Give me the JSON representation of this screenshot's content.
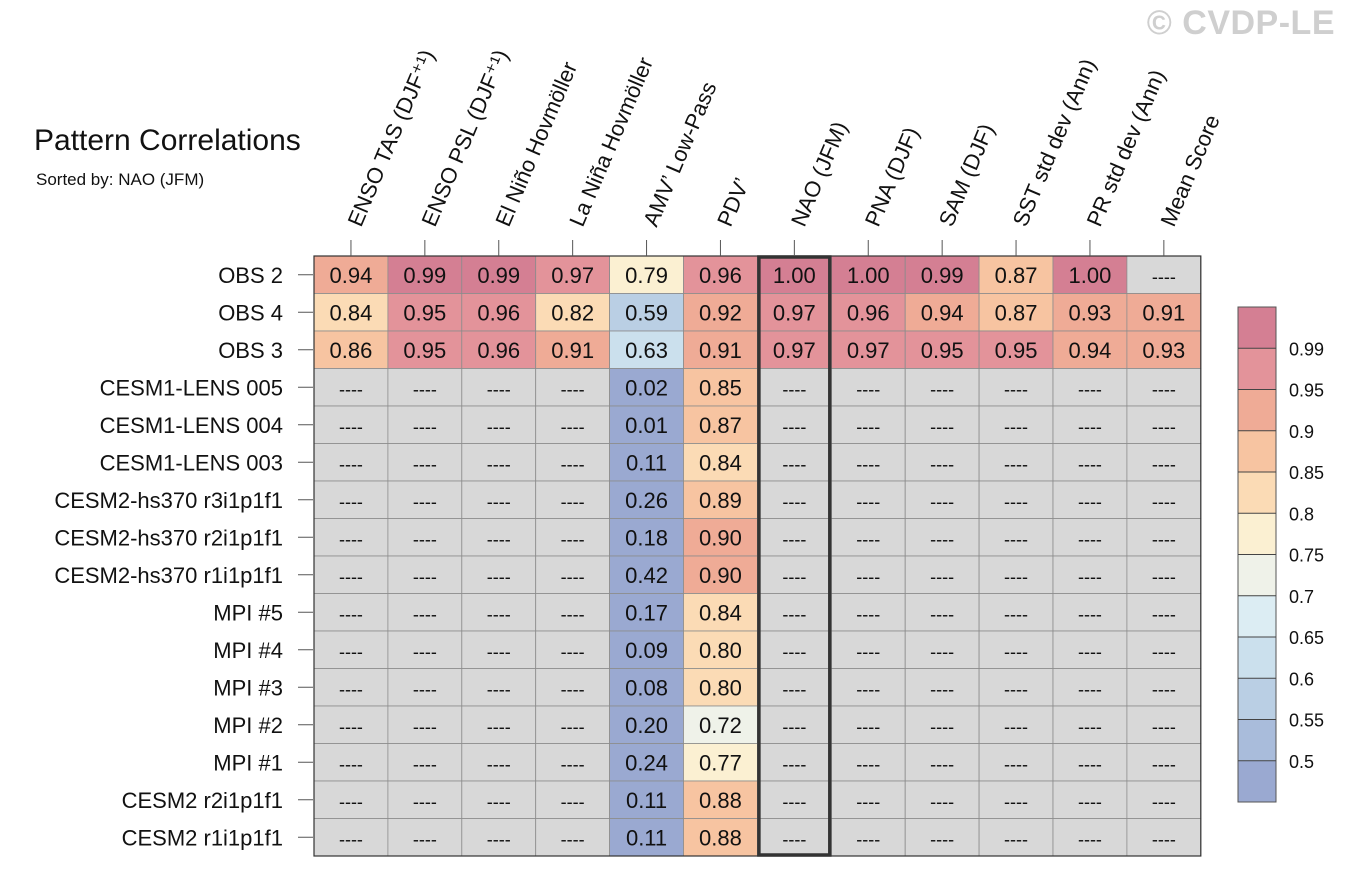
{
  "watermark": "© CVDP-LE",
  "chart_data": {
    "type": "heatmap",
    "title": "Pattern Correlations",
    "subtitle": "Sorted by: NAO (JFM)",
    "highlighted_column": "NAO (JFM)",
    "missing_label": "----",
    "columns": [
      "ENSO TAS (DJF⁺¹)",
      "ENSO PSL (DJF⁺¹)",
      "El Niño Hovmöller",
      "La Niña Hovmöller",
      "AMV’ Low-Pass",
      "PDV’",
      "NAO (JFM)",
      "PNA (DJF)",
      "SAM (DJF)",
      "SST std dev (Ann)",
      "PR std dev (Ann)",
      "Mean Score"
    ],
    "rows": [
      "OBS 2",
      "OBS 4",
      "OBS 3",
      "CESM1-LENS 005",
      "CESM1-LENS 004",
      "CESM1-LENS 003",
      "CESM2-hs370 r3i1p1f1",
      "CESM2-hs370 r2i1p1f1",
      "CESM2-hs370 r1i1p1f1",
      "MPI #5",
      "MPI #4",
      "MPI #3",
      "MPI #2",
      "MPI #1",
      "CESM2 r2i1p1f1",
      "CESM2 r1i1p1f1"
    ],
    "values": [
      [
        0.94,
        0.99,
        0.99,
        0.97,
        0.79,
        0.96,
        1.0,
        1.0,
        0.99,
        0.87,
        1.0,
        null
      ],
      [
        0.84,
        0.95,
        0.96,
        0.82,
        0.59,
        0.92,
        0.97,
        0.96,
        0.94,
        0.87,
        0.93,
        0.91
      ],
      [
        0.86,
        0.95,
        0.96,
        0.91,
        0.63,
        0.91,
        0.97,
        0.97,
        0.95,
        0.95,
        0.94,
        0.93
      ],
      [
        null,
        null,
        null,
        null,
        0.02,
        0.85,
        null,
        null,
        null,
        null,
        null,
        null
      ],
      [
        null,
        null,
        null,
        null,
        0.01,
        0.87,
        null,
        null,
        null,
        null,
        null,
        null
      ],
      [
        null,
        null,
        null,
        null,
        0.11,
        0.84,
        null,
        null,
        null,
        null,
        null,
        null
      ],
      [
        null,
        null,
        null,
        null,
        0.26,
        0.89,
        null,
        null,
        null,
        null,
        null,
        null
      ],
      [
        null,
        null,
        null,
        null,
        0.18,
        0.9,
        null,
        null,
        null,
        null,
        null,
        null
      ],
      [
        null,
        null,
        null,
        null,
        0.42,
        0.9,
        null,
        null,
        null,
        null,
        null,
        null
      ],
      [
        null,
        null,
        null,
        null,
        0.17,
        0.84,
        null,
        null,
        null,
        null,
        null,
        null
      ],
      [
        null,
        null,
        null,
        null,
        0.09,
        0.8,
        null,
        null,
        null,
        null,
        null,
        null
      ],
      [
        null,
        null,
        null,
        null,
        0.08,
        0.8,
        null,
        null,
        null,
        null,
        null,
        null
      ],
      [
        null,
        null,
        null,
        null,
        0.2,
        0.72,
        null,
        null,
        null,
        null,
        null,
        null
      ],
      [
        null,
        null,
        null,
        null,
        0.24,
        0.77,
        null,
        null,
        null,
        null,
        null,
        null
      ],
      [
        null,
        null,
        null,
        null,
        0.11,
        0.88,
        null,
        null,
        null,
        null,
        null,
        null
      ],
      [
        null,
        null,
        null,
        null,
        0.11,
        0.88,
        null,
        null,
        null,
        null,
        null,
        null
      ]
    ],
    "colorbar": {
      "thresholds": [
        0.5,
        0.55,
        0.6,
        0.65,
        0.7,
        0.75,
        0.8,
        0.85,
        0.9,
        0.95,
        0.99
      ],
      "tick_labels": [
        "0.5",
        "0.55",
        "0.6",
        "0.65",
        "0.7",
        "0.75",
        "0.8",
        "0.85",
        "0.9",
        "0.95",
        "0.99"
      ],
      "colors": [
        "#9aa9d1",
        "#a9bcdb",
        "#bacfe4",
        "#cbe0ed",
        "#dcedf3",
        "#eff2e9",
        "#fbf0d2",
        "#fbdbb5",
        "#f7c4a1",
        "#efab96",
        "#e3939a",
        "#d47f93"
      ]
    },
    "missing_color": "#d8d8d8"
  }
}
